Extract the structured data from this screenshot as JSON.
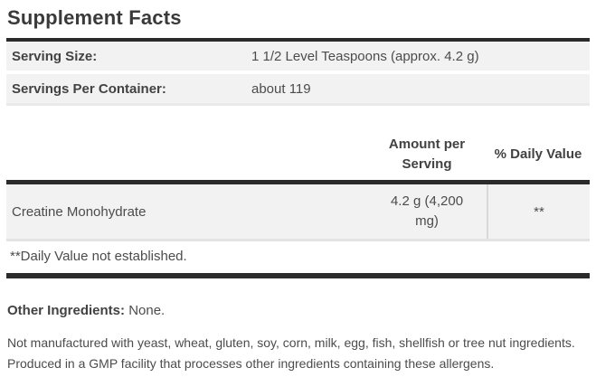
{
  "title": "Supplement Facts",
  "serving_info": {
    "rows": [
      {
        "label": "Serving Size:",
        "value": "1 1/2 Level Teaspoons (approx. 4.2 g)"
      },
      {
        "label": "Servings Per Container:",
        "value": "about 119"
      }
    ]
  },
  "nutrient_table": {
    "columns": {
      "amount": "Amount per Serving",
      "daily_value": "% Daily Value"
    },
    "rows": [
      {
        "name": "Creatine Monohydrate",
        "amount": "4.2 g (4,200 mg)",
        "daily_value": "**"
      }
    ],
    "footnote": "**Daily Value not established."
  },
  "other_ingredients": {
    "label": "Other Ingredients:",
    "value": "None."
  },
  "allergen_statement": "Not manufactured with yeast, wheat, gluten, soy, corn, milk, egg, fish, shellfish or tree nut ingredients. Produced in a GMP facility that processes other ingredients containing these allergens.",
  "colors": {
    "row_background": "#f2f2f2",
    "heavy_border": "#2b2b2b",
    "column_divider": "#d9d9d9",
    "title_text": "#3a3a3a",
    "body_text": "#4c4c4c"
  }
}
